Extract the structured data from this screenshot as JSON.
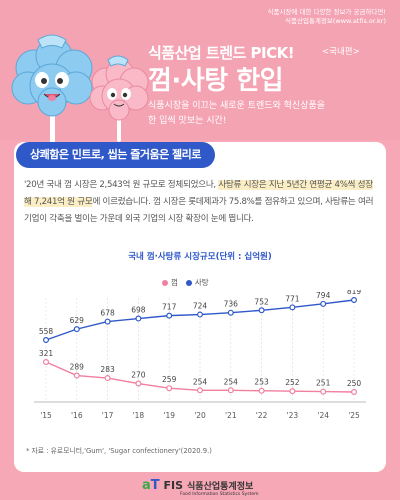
{
  "header": {
    "note_line1": "식품시장에 대한 다양한 정보가 궁금하다면!",
    "note_line2": "식품산업통계정보(www.atfis.or.kr)",
    "title_main": "식품산업 트렌드 PICK!",
    "title_region": "<국내편>",
    "title_big": "껌·사탕 한입",
    "subtitle_line1": "식품시장을 이끄는 새로운 트렌드와 혁신상품을",
    "subtitle_line2": "한 입씩 맛보는 시간!"
  },
  "section": {
    "pill_label": "상쾌함은 민트로, 씹는 즐거움은 젤리로",
    "para_part1": "'20년 국내 껌 시장은 2,543억 원 규모로 정체되었으나, ",
    "para_highlight": "사탕류 시장은 지난 5년간 연평균 4%씩 성장해 7,241억 원 규모",
    "para_part2": "에 이르렀습니다. 껌 시장은 롯데제과가 75.8%를 점유하고 있으며, 사탕류는 여러 기업이 각축을 벌이는 가운데 외국 기업의 시장 확장이 눈에 띕니다."
  },
  "chart_data": {
    "type": "line",
    "title": "국내 껌·사탕류 시장규모(단위 : 십억원)",
    "categories": [
      "'15",
      "'16",
      "'17",
      "'18",
      "'19",
      "'20",
      "'21",
      "'22",
      "'23",
      "'24",
      "'25"
    ],
    "series": [
      {
        "name": "껌",
        "color": "#f07fa0",
        "values": [
          321,
          289,
          283,
          270,
          259,
          254,
          254,
          253,
          252,
          251,
          250
        ]
      },
      {
        "name": "사탕",
        "color": "#2f58c9",
        "values": [
          558,
          629,
          678,
          698,
          717,
          724,
          736,
          752,
          771,
          794,
          819
        ]
      }
    ],
    "legend_position": "top-center"
  },
  "source": "* 자료 : 유로모니터,'Gum', 'Sugar confectionery'(2020.9.)",
  "footer": {
    "logo_a": "a",
    "logo_t": "T",
    "logo_fis": " FIS",
    "name": "식품산업통계정보",
    "name_en": "Food Information Statistics System"
  }
}
